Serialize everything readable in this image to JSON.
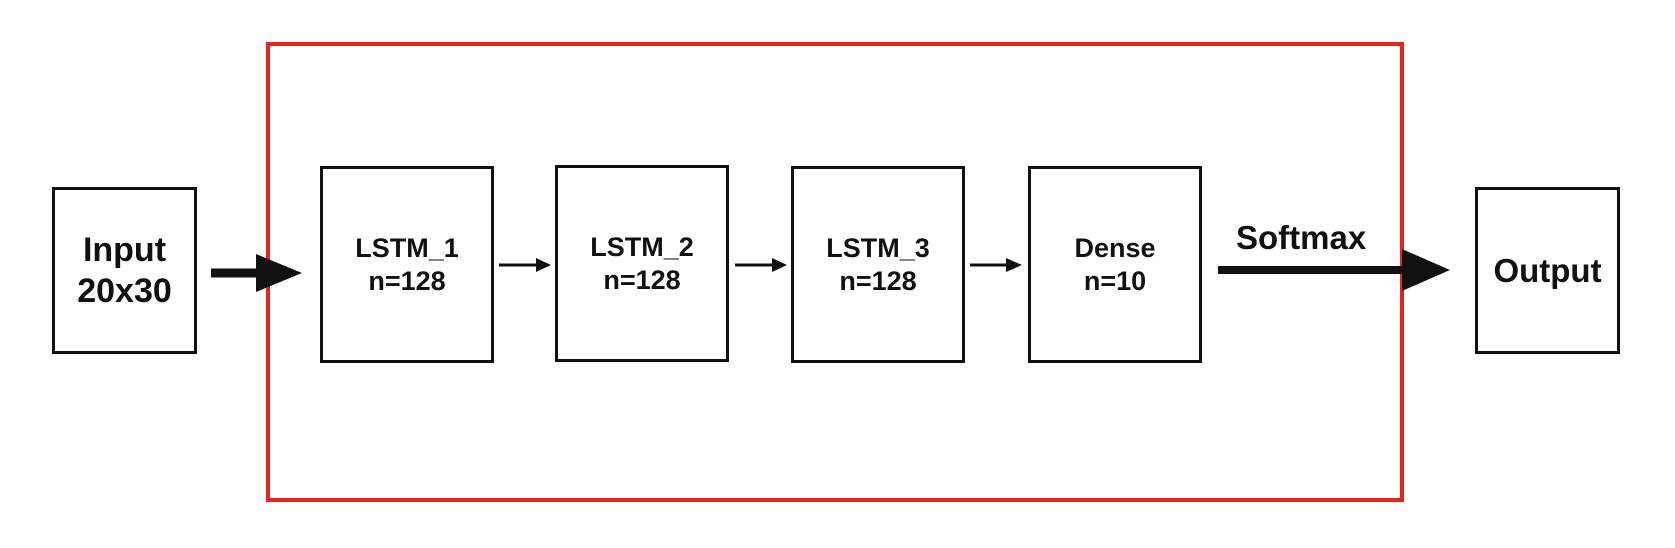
{
  "diagram": {
    "input": {
      "line1": "Input",
      "line2": "20x30"
    },
    "layers": [
      {
        "line1": "LSTM_1",
        "line2": "n=128"
      },
      {
        "line1": "LSTM_2",
        "line2": "n=128"
      },
      {
        "line1": "LSTM_3",
        "line2": "n=128"
      },
      {
        "line1": "Dense",
        "line2": "n=10"
      }
    ],
    "activation_label": "Softmax",
    "output": {
      "line1": "Output"
    },
    "colors": {
      "frame": "#e8231a",
      "box_border": "#111111",
      "arrow": "#111111"
    }
  }
}
